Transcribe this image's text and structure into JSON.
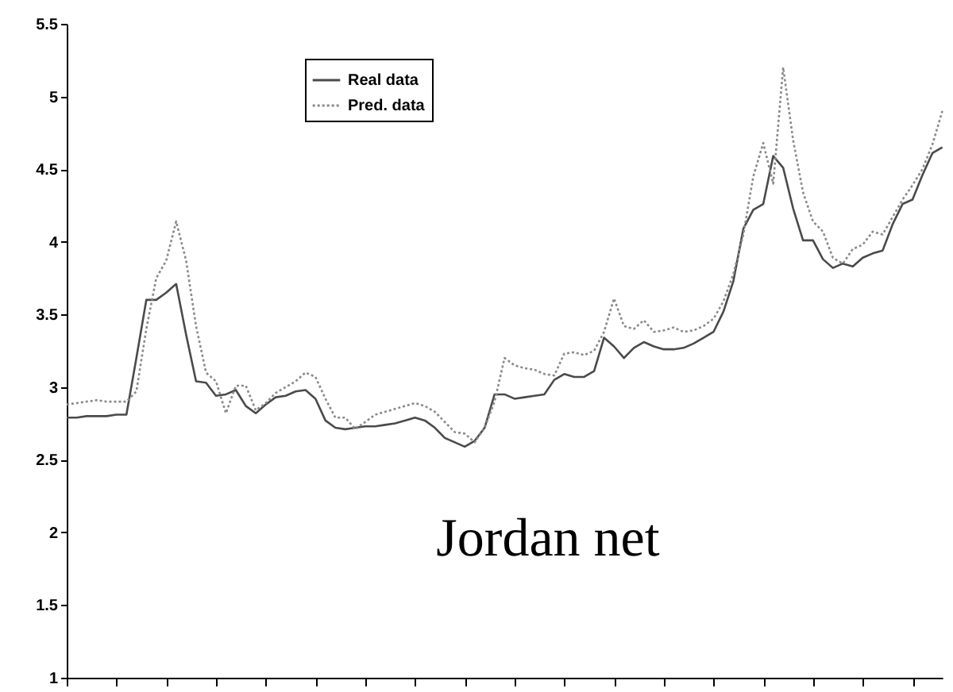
{
  "chart_data": {
    "type": "line",
    "annotations": [
      "Jordan net"
    ],
    "categories": [
      null,
      null,
      null,
      null,
      null,
      null,
      null,
      null,
      null,
      null,
      null,
      null,
      null,
      null,
      null,
      null,
      null,
      null,
      null,
      null,
      null,
      null,
      null,
      null,
      null,
      null,
      null,
      null,
      null,
      null,
      null,
      null,
      null,
      null,
      null,
      null,
      null,
      null,
      null,
      null,
      null,
      null,
      null,
      null,
      null,
      null,
      null,
      null,
      null,
      null,
      null,
      null,
      null,
      null,
      null,
      null,
      null,
      null,
      null,
      null,
      null,
      null,
      null,
      null,
      null,
      null,
      null,
      null,
      null,
      null,
      null,
      null,
      null,
      null,
      null,
      null,
      null,
      null,
      null,
      null,
      null,
      null,
      null,
      null,
      null,
      null,
      null,
      null,
      null
    ],
    "ylim": [
      1,
      5.5
    ],
    "yticks": [
      1,
      1.5,
      2,
      2.5,
      3,
      3.5,
      4,
      4.5,
      5,
      5.5
    ],
    "tick_labels": "y",
    "legend": "top left",
    "series": [
      {
        "name": "Real data",
        "color": "#4a4a4a",
        "line_style": "solid",
        "values": [
          2.79,
          2.79,
          2.8,
          2.8,
          2.8,
          2.81,
          2.81,
          3.2,
          3.6,
          3.6,
          3.65,
          3.71,
          3.36,
          3.04,
          3.03,
          2.94,
          2.95,
          2.98,
          2.87,
          2.82,
          2.88,
          2.93,
          2.94,
          2.97,
          2.98,
          2.92,
          2.77,
          2.72,
          2.71,
          2.72,
          2.73,
          2.73,
          2.74,
          2.75,
          2.77,
          2.79,
          2.77,
          2.72,
          2.65,
          2.62,
          2.59,
          2.63,
          2.72,
          2.95,
          2.95,
          2.92,
          2.93,
          2.94,
          2.95,
          3.05,
          3.09,
          3.07,
          3.07,
          3.11,
          3.34,
          3.28,
          3.2,
          3.27,
          3.31,
          3.28,
          3.26,
          3.26,
          3.27,
          3.3,
          3.34,
          3.38,
          3.52,
          3.73,
          4.09,
          4.22,
          4.26,
          4.59,
          4.51,
          4.23,
          4.01,
          4.01,
          3.88,
          3.82,
          3.85,
          3.83,
          3.89,
          3.92,
          3.94,
          4.12,
          4.26,
          4.29,
          4.46,
          4.61,
          4.65
        ]
      },
      {
        "name": "Pred. data",
        "color": "#8a8a8a",
        "line_style": "dotted",
        "values": [
          2.88,
          2.89,
          2.9,
          2.91,
          2.9,
          2.9,
          2.9,
          2.97,
          3.4,
          3.75,
          3.87,
          4.14,
          3.87,
          3.42,
          3.1,
          3.04,
          2.82,
          3.01,
          3.01,
          2.84,
          2.89,
          2.96,
          3,
          3.04,
          3.1,
          3.07,
          2.92,
          2.79,
          2.79,
          2.71,
          2.76,
          2.81,
          2.83,
          2.85,
          2.87,
          2.89,
          2.87,
          2.83,
          2.76,
          2.69,
          2.68,
          2.62,
          2.72,
          2.9,
          3.2,
          3.15,
          3.13,
          3.12,
          3.09,
          3.08,
          3.23,
          3.24,
          3.22,
          3.25,
          3.38,
          3.61,
          3.42,
          3.4,
          3.46,
          3.38,
          3.39,
          3.41,
          3.38,
          3.39,
          3.42,
          3.47,
          3.59,
          3.78,
          4.05,
          4.45,
          4.68,
          4.4,
          5.2,
          4.7,
          4.34,
          4.14,
          4.07,
          3.89,
          3.85,
          3.95,
          3.98,
          4.07,
          4.05,
          4.17,
          4.29,
          4.39,
          4.5,
          4.67,
          4.9
        ]
      }
    ]
  }
}
